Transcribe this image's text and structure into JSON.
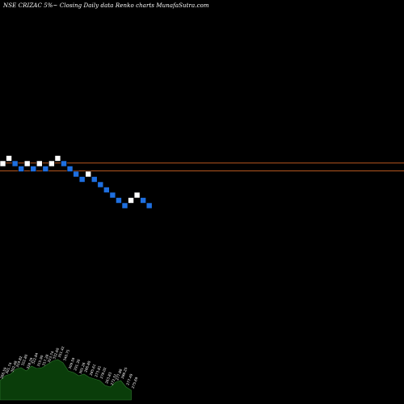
{
  "title": "NSE CRIZAC 5%~ Closing Daily data  Renko  charts MunafaSutra.com",
  "chart_data": {
    "type": "renko",
    "brick_size_label": "5%",
    "colors": {
      "background": "#000000",
      "up_brick": "#ffffff",
      "down_brick": "#1e6fe0",
      "brick_outline": "#000000",
      "reference_line": "#b5561f",
      "volume_fill": "#0a3d0a",
      "volume_outline": "#2f7a2f",
      "volume_label": "#ffffff",
      "title_text": "#ffffff"
    },
    "bricks": [
      {
        "dir": "up",
        "level": 2
      },
      {
        "dir": "up",
        "level": 3
      },
      {
        "dir": "down",
        "level": 2
      },
      {
        "dir": "down",
        "level": 1
      },
      {
        "dir": "up",
        "level": 2
      },
      {
        "dir": "down",
        "level": 1
      },
      {
        "dir": "up",
        "level": 2
      },
      {
        "dir": "down",
        "level": 1
      },
      {
        "dir": "up",
        "level": 2
      },
      {
        "dir": "up",
        "level": 3
      },
      {
        "dir": "down",
        "level": 2
      },
      {
        "dir": "down",
        "level": 1
      },
      {
        "dir": "down",
        "level": 0
      },
      {
        "dir": "down",
        "level": -1
      },
      {
        "dir": "up",
        "level": 0
      },
      {
        "dir": "down",
        "level": -1
      },
      {
        "dir": "down",
        "level": -2
      },
      {
        "dir": "down",
        "level": -3
      },
      {
        "dir": "down",
        "level": -4
      },
      {
        "dir": "down",
        "level": -5
      },
      {
        "dir": "down",
        "level": -6
      },
      {
        "dir": "up",
        "level": -5
      },
      {
        "dir": "up",
        "level": -4
      },
      {
        "dir": "down",
        "level": -5
      },
      {
        "dir": "down",
        "level": -6
      }
    ],
    "reference_lines": [
      {
        "level": 2.2
      },
      {
        "level": 0.7
      }
    ],
    "volume": {
      "values": [
        24,
        30,
        32,
        38,
        40,
        36,
        42,
        39,
        40,
        44,
        48,
        50,
        46,
        36,
        34,
        30,
        32,
        28,
        26,
        24,
        18,
        16,
        22,
        24,
        16,
        12
      ],
      "labels": [
        "266.59",
        "301.74",
        "302.48",
        "319.82",
        "322.80",
        "328.29",
        "322.84",
        "315.90",
        "317.28",
        "323.74",
        "332.60",
        "351.42",
        "340.75",
        "309.59",
        "291.30",
        "301.26",
        "286.80",
        "285.61",
        "273.81",
        "278.02",
        "263.83",
        "272.51",
        "277.88",
        "286.25",
        "277.49",
        "275.69"
      ]
    }
  }
}
